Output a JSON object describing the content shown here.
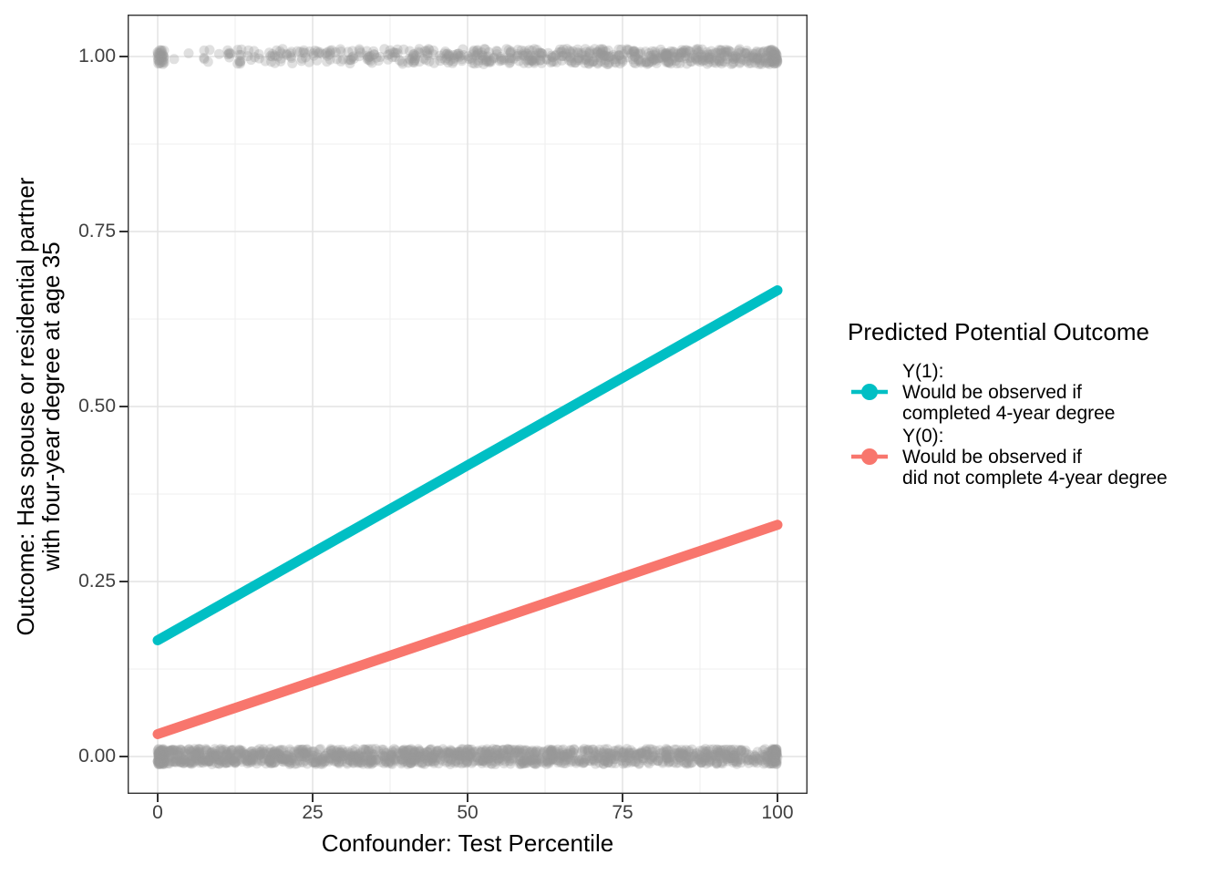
{
  "chart_data": {
    "type": "scatter",
    "title": "",
    "x_axis": {
      "title": "Confounder: Test Percentile",
      "range": [
        0,
        100
      ],
      "ticks": [
        0,
        25,
        50,
        75,
        100
      ],
      "labels": [
        "0",
        "25",
        "50",
        "75",
        "100"
      ],
      "minor": [
        12.5,
        37.5,
        62.5,
        87.5
      ]
    },
    "y_axis": {
      "title": "Outcome: Has spouse or residential partner\nwith four-year degree at age 35",
      "range": [
        0,
        1
      ],
      "ticks": [
        0,
        0.25,
        0.5,
        0.75,
        1
      ],
      "labels": [
        "0.00",
        "0.25",
        "0.50",
        "0.75",
        "1.00"
      ],
      "minor": [
        0.125,
        0.375,
        0.625,
        0.875
      ]
    },
    "grid": {
      "major_color": "#E4E4E4",
      "minor_color": "#EFEFEF",
      "major_width": 1.6,
      "minor_width": 1.1
    },
    "panel": {
      "border_color": "#333333",
      "border_width": 1.4,
      "background": "#FFFFFF"
    },
    "lines": [
      {
        "name": "Y(1)",
        "color": "#00BFC4",
        "x": [
          0,
          100
        ],
        "y": [
          0.166,
          0.666
        ],
        "width": 11
      },
      {
        "name": "Y(0)",
        "color": "#F8766D",
        "x": [
          0,
          100
        ],
        "y": [
          0.032,
          0.331
        ],
        "width": 11
      }
    ],
    "scatter_bands": [
      {
        "y": 1,
        "n": 700,
        "x_skew": 0.6,
        "edge_frac": 0.045,
        "color": "#999999",
        "alpha": 0.3
      },
      {
        "y": 0,
        "n": 1500,
        "x_skew": 1.15,
        "edge_frac": 0.04,
        "color": "#999999",
        "alpha": 0.3
      }
    ],
    "point_radius_px": 5.5,
    "jitter_y": 0.011,
    "legend": {
      "title": "Predicted Potential Outcome",
      "position": "right",
      "entries": [
        {
          "name": "Y(1)",
          "color": "#00BFC4",
          "label": "Y(1):\nWould be observed if\ncompleted 4-year degree"
        },
        {
          "name": "Y(0)",
          "color": "#F8766D",
          "label": "Y(0):\nWould be observed if\ndid not complete 4-year degree"
        }
      ]
    }
  }
}
